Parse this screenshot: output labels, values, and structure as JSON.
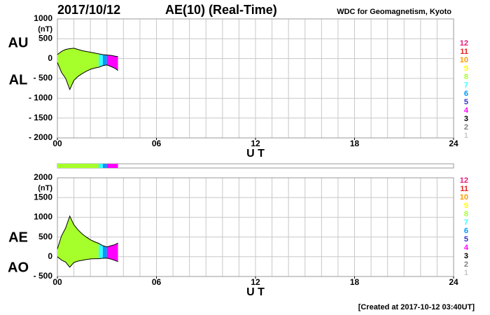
{
  "title": "2017/10/12",
  "subtitle": "AE(10) (Real-Time)",
  "source": "WDC for Geomagnetism, Kyoto",
  "footer": "[Created at 2017-10-12 03:40UT]",
  "station_legend": {
    "values": [
      12,
      11,
      10,
      9,
      8,
      7,
      6,
      5,
      4,
      3,
      2,
      1
    ],
    "colors": [
      "#e8197a",
      "#e82020",
      "#ff9900",
      "#ffff00",
      "#a6ff2a",
      "#33ffff",
      "#0099ff",
      "#3333cc",
      "#ff00ff",
      "#000000",
      "#808080",
      "#c8c8c8"
    ]
  },
  "segments": [
    {
      "start": 0,
      "end": 2.5,
      "stations": 8
    },
    {
      "start": 2.5,
      "end": 2.75,
      "stations": 7
    },
    {
      "start": 2.75,
      "end": 3.0,
      "stations": 6
    },
    {
      "start": 3.0,
      "end": 3.67,
      "stations": 4
    }
  ],
  "chart_data": [
    {
      "type": "line",
      "ylabel": "(nT)",
      "xlabel": "U T",
      "x": [
        0,
        0.25,
        0.5,
        0.75,
        1,
        1.25,
        1.5,
        1.75,
        2,
        2.25,
        2.5,
        2.75,
        3,
        3.25,
        3.5,
        3.67
      ],
      "series": [
        {
          "name": "AU",
          "color": "#000000",
          "values": [
            100,
            180,
            230,
            250,
            260,
            230,
            200,
            180,
            160,
            140,
            120,
            100,
            90,
            80,
            60,
            50
          ]
        },
        {
          "name": "AL",
          "color": "#000000",
          "values": [
            -100,
            -350,
            -500,
            -780,
            -550,
            -450,
            -380,
            -320,
            -270,
            -240,
            -220,
            -180,
            -160,
            -200,
            -250,
            -300
          ]
        }
      ],
      "xlim": [
        0,
        24
      ],
      "xticks": [
        {
          "value": 0,
          "label": "00"
        },
        {
          "value": 6,
          "label": "06"
        },
        12,
        18,
        24
      ],
      "xgrid": [
        0,
        1,
        2,
        3,
        4,
        5,
        6,
        7,
        8,
        9,
        10,
        11,
        12,
        13,
        14,
        15,
        16,
        17,
        18,
        19,
        20,
        21,
        22,
        23,
        24
      ],
      "ylim": [
        -2000,
        1000
      ],
      "yticks": [
        {
          "value": -2000,
          "label": "- 2000"
        },
        {
          "value": -1500,
          "label": "- 1500"
        },
        {
          "value": -1000,
          "label": "- 1000"
        },
        {
          "value": -500,
          "label": "- 500"
        },
        0,
        500,
        1000
      ],
      "grid": true
    },
    {
      "type": "line",
      "ylabel": "(nT)",
      "xlabel": "U T",
      "x": [
        0,
        0.25,
        0.5,
        0.75,
        1,
        1.25,
        1.5,
        1.75,
        2,
        2.25,
        2.5,
        2.75,
        3,
        3.25,
        3.5,
        3.67
      ],
      "series": [
        {
          "name": "AE",
          "color": "#000000",
          "values": [
            200,
            530,
            730,
            1030,
            810,
            680,
            580,
            500,
            430,
            380,
            340,
            280,
            250,
            280,
            310,
            350
          ]
        },
        {
          "name": "AO",
          "color": "#000000",
          "values": [
            0,
            -85,
            -135,
            -265,
            -145,
            -110,
            -90,
            -70,
            -55,
            -50,
            -50,
            -40,
            -35,
            -60,
            -95,
            -125
          ]
        }
      ],
      "xlim": [
        0,
        24
      ],
      "xticks": [
        {
          "value": 0,
          "label": "00"
        },
        {
          "value": 6,
          "label": "06"
        },
        12,
        18,
        24
      ],
      "xgrid": [
        0,
        1,
        2,
        3,
        4,
        5,
        6,
        7,
        8,
        9,
        10,
        11,
        12,
        13,
        14,
        15,
        16,
        17,
        18,
        19,
        20,
        21,
        22,
        23,
        24
      ],
      "ylim": [
        -500,
        2000
      ],
      "yticks": [
        {
          "value": -500,
          "label": "- 500"
        },
        0,
        500,
        1000,
        1500,
        2000
      ],
      "grid": true
    }
  ]
}
